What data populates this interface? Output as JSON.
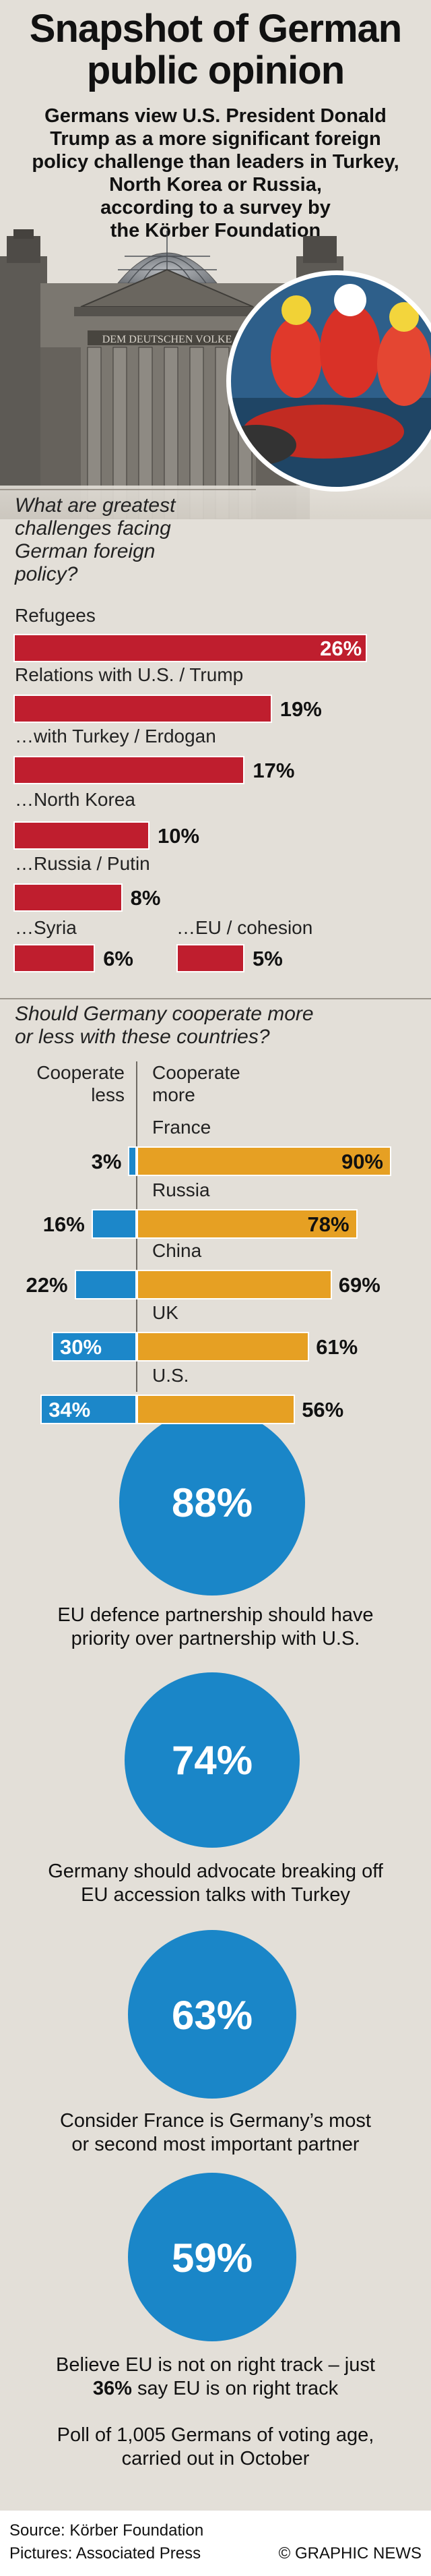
{
  "header": {
    "title_line1": "Snapshot of German",
    "title_line2": "public opinion",
    "subtitle_lines": [
      "Germans view U.S. President Donald",
      "Trump as a more significant foreign",
      "policy challenge than leaders in Turkey,",
      "North Korea or Russia,",
      "according to a survey by",
      "the Körber Foundation"
    ],
    "building_inscription": "DEM DEUTSCHEN VOLKE"
  },
  "chart_data": [
    {
      "type": "bar",
      "title": "What are greatest challenges facing German foreign policy?",
      "title_lines": [
        "What are greatest",
        "challenges facing",
        "German foreign",
        "policy?"
      ],
      "categories": [
        "Refugees",
        "Relations with U.S. / Trump",
        "…with Turkey / Erdogan",
        "…North Korea",
        "…Russia / Putin",
        "…Syria",
        "…EU / cohesion"
      ],
      "values": [
        26,
        19,
        17,
        10,
        8,
        6,
        5
      ],
      "value_labels": [
        "26%",
        "19%",
        "17%",
        "10%",
        "8%",
        "6%",
        "5%"
      ],
      "bar_color": "#bf1e2e"
    },
    {
      "type": "bar",
      "title": "Should Germany cooperate more or less with these countries?",
      "title_lines": [
        "Should Germany cooperate more",
        "or less with these countries?"
      ],
      "column_labels": {
        "less": [
          "Cooperate",
          "less"
        ],
        "more": [
          "Cooperate",
          "more"
        ]
      },
      "categories": [
        "France",
        "Russia",
        "China",
        "UK",
        "U.S."
      ],
      "series": [
        {
          "name": "Cooperate less",
          "values": [
            3,
            16,
            22,
            30,
            34
          ],
          "labels": [
            "3%",
            "16%",
            "22%",
            "30%",
            "34%"
          ],
          "color": "#1c87c9"
        },
        {
          "name": "Cooperate more",
          "values": [
            90,
            78,
            69,
            61,
            56
          ],
          "labels": [
            "90%",
            "78%",
            "69%",
            "61%",
            "56%"
          ],
          "color": "#e6a023"
        }
      ]
    }
  ],
  "stats": [
    {
      "value": "88%",
      "caption_lines": [
        "EU defence partnership should have",
        "priority over partnership with U.S."
      ]
    },
    {
      "value": "74%",
      "caption_lines": [
        "Germany should advocate breaking off",
        "EU accession talks with Turkey"
      ]
    },
    {
      "value": "63%",
      "caption_lines": [
        "Consider France is Germany’s most",
        "or second most important partner"
      ]
    },
    {
      "value": "59%",
      "caption_lines": [
        "Believe EU is not on right track – just",
        "36%",
        " say EU is on right track"
      ]
    }
  ],
  "poll_note_lines": [
    "Poll of 1,005 Germans of voting age,",
    "carried out in October"
  ],
  "footer": {
    "source": "Source: Körber Foundation",
    "pictures": "Pictures: Associated Press",
    "credit": "© GRAPHIC NEWS"
  },
  "colors": {
    "background": "#e3dfd8",
    "challenge_bar": "#bf1e2e",
    "less_bar": "#1c87c9",
    "more_bar": "#e6a023",
    "circle": "#1a86c8"
  },
  "icons": [
    "reichstag-building-photo",
    "refugee-rescue-photo"
  ]
}
